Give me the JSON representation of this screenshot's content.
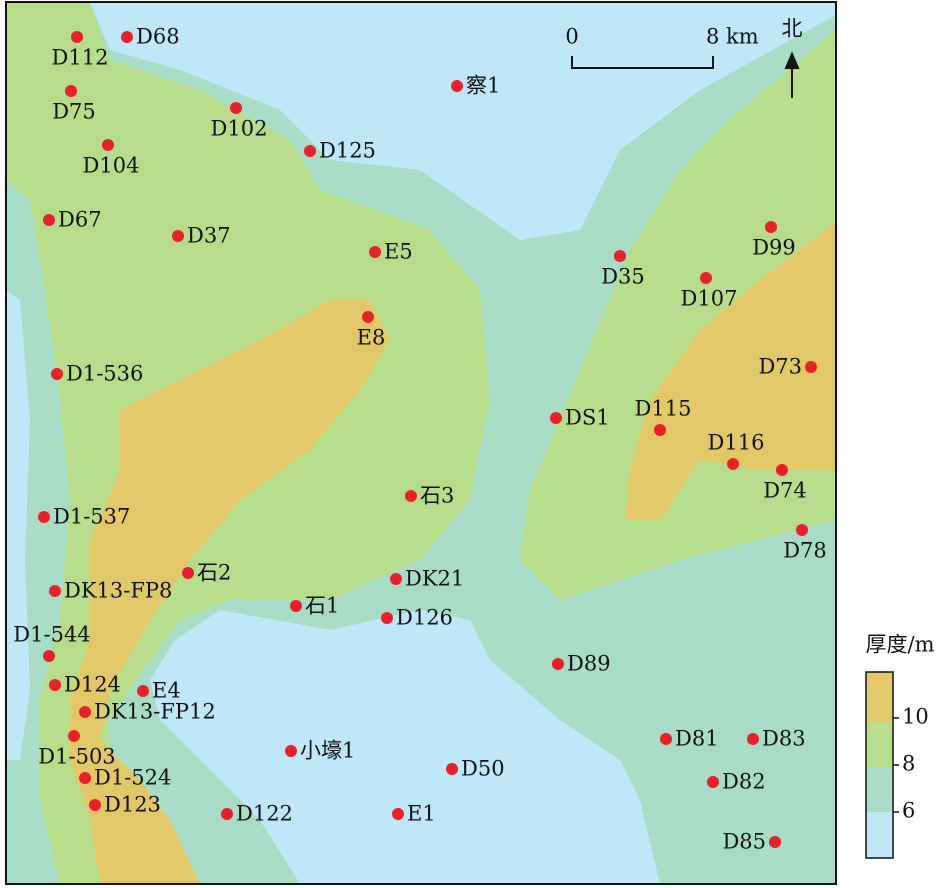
{
  "wells": [
    {
      "label": "D68"
    },
    {
      "label": "D112"
    },
    {
      "label": "D75"
    },
    {
      "label": "D102"
    },
    {
      "label": "D125"
    },
    {
      "label": "察1"
    },
    {
      "label": "D104"
    },
    {
      "label": "D67"
    },
    {
      "label": "D37"
    },
    {
      "label": "E5"
    },
    {
      "label": "D35"
    },
    {
      "label": "D99"
    },
    {
      "label": "D107"
    },
    {
      "label": "E8"
    },
    {
      "label": "D1-536"
    },
    {
      "label": "D73"
    },
    {
      "label": "DS1"
    },
    {
      "label": "D115"
    },
    {
      "label": "D116"
    },
    {
      "label": "D74"
    },
    {
      "label": "石3"
    },
    {
      "label": "D1-537"
    },
    {
      "label": "D78"
    },
    {
      "label": "石2"
    },
    {
      "label": "DK21"
    },
    {
      "label": "DK13-FP8"
    },
    {
      "label": "石1"
    },
    {
      "label": "D126"
    },
    {
      "label": "D1-544"
    },
    {
      "label": "D89"
    },
    {
      "label": "D124"
    },
    {
      "label": "E4"
    },
    {
      "label": "DK13-FP12"
    },
    {
      "label": "D1-503"
    },
    {
      "label": "D81"
    },
    {
      "label": "D83"
    },
    {
      "label": "小壕1"
    },
    {
      "label": "D50"
    },
    {
      "label": "D1-524"
    },
    {
      "label": "D82"
    },
    {
      "label": "D123"
    },
    {
      "label": "D122"
    },
    {
      "label": "E1"
    },
    {
      "label": "D85"
    }
  ],
  "scale_bar": {
    "start": "0",
    "end": "8 km"
  },
  "north": "北",
  "legend": {
    "title": "厚度/m",
    "ticks": [
      6,
      8,
      10
    ]
  }
}
